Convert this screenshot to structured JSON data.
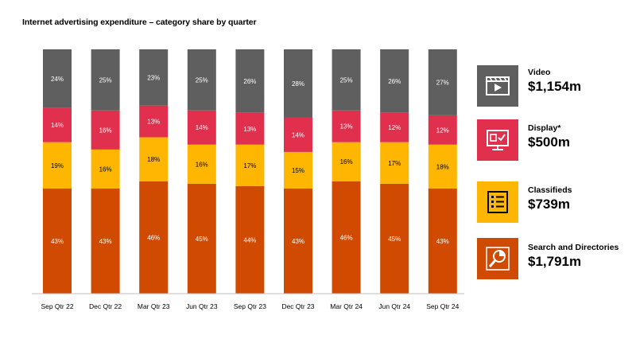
{
  "title": "Internet advertising expenditure – category share by quarter",
  "colors": {
    "video": "#5f5f5f",
    "display": "#e0304e",
    "classifieds": "#ffb600",
    "search": "#d04a02"
  },
  "legend": [
    {
      "key": "video",
      "name": "Video",
      "value": "$1,154m",
      "icon": "video-player-icon"
    },
    {
      "key": "display",
      "name": "Display*",
      "value": "$500m",
      "icon": "monitor-check-icon"
    },
    {
      "key": "classifieds",
      "name": "Classifieds",
      "value": "$739m",
      "icon": "list-icon"
    },
    {
      "key": "search",
      "name": "Search and Directories",
      "value": "$1,791m",
      "icon": "pie-magnifier-icon"
    }
  ],
  "chart_data": {
    "type": "bar",
    "stacked": true,
    "categories": [
      "Sep Qtr 22",
      "Dec Qtr 22",
      "Mar Qtr 23",
      "Jun Qtr 23",
      "Sep Qtr 23",
      "Dec Qtr 23",
      "Mar Qtr 24",
      "Jun Qtr 24",
      "Sep Qtr 24"
    ],
    "series": [
      {
        "name": "Search and Directories",
        "key": "search",
        "values": [
          43,
          43,
          46,
          45,
          44,
          43,
          46,
          45,
          43
        ]
      },
      {
        "name": "Classifieds",
        "key": "classifieds",
        "values": [
          19,
          16,
          18,
          16,
          17,
          15,
          16,
          17,
          18
        ]
      },
      {
        "name": "Display*",
        "key": "display",
        "values": [
          14,
          16,
          13,
          14,
          13,
          14,
          13,
          12,
          12
        ]
      },
      {
        "name": "Video",
        "key": "video",
        "values": [
          24,
          25,
          23,
          25,
          26,
          28,
          25,
          26,
          27
        ]
      }
    ],
    "value_suffix": "%",
    "ylim": [
      0,
      100
    ],
    "legend_placement": "right"
  }
}
